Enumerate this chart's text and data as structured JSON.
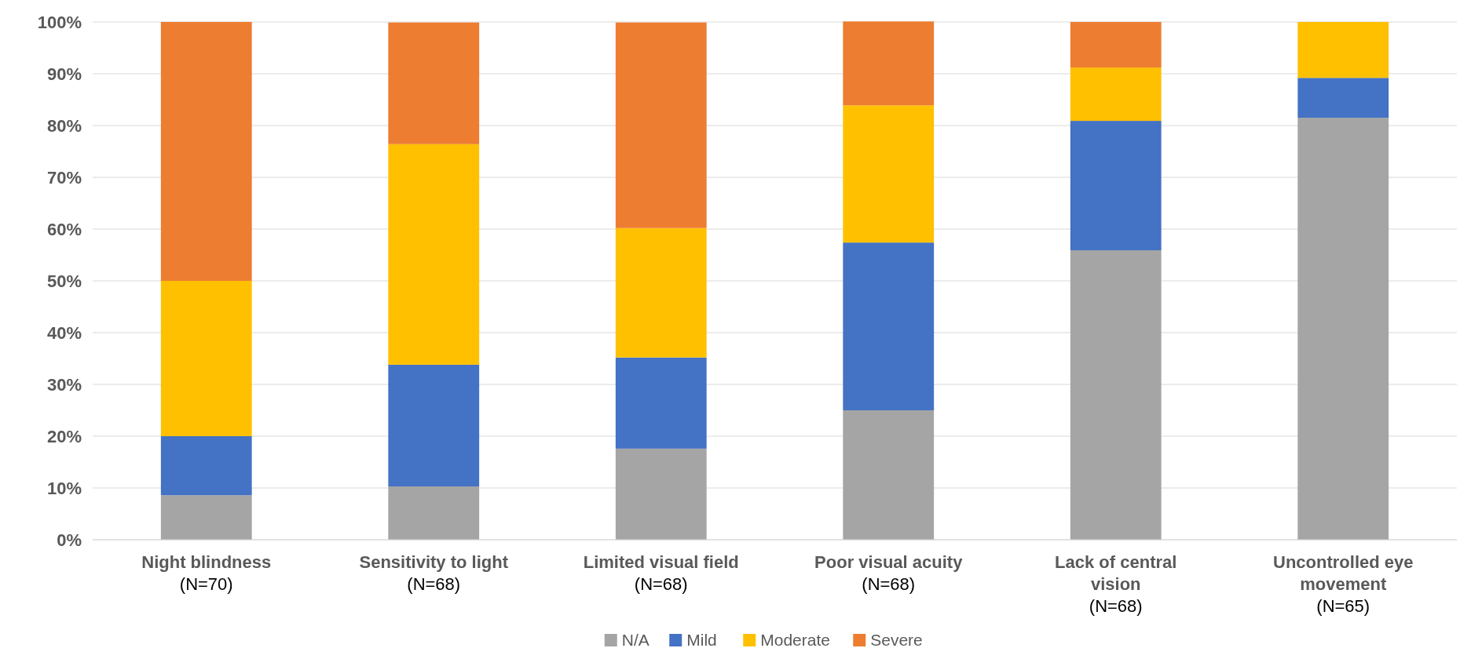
{
  "chart_data": {
    "type": "bar",
    "stacked": true,
    "categories": [
      "Night blindness\n(N=70)",
      "Sensitivity to light\n(N=68)",
      "Limited visual field\n(N=68)",
      "Poor visual acuity\n(N=68)",
      "Lack of central\nvision\n(N=68)",
      "Uncontrolled eye\nmovement\n(N=65)"
    ],
    "series": [
      {
        "name": "N/A",
        "color": "#a5a5a5",
        "values": [
          8.6,
          10.3,
          17.6,
          25.0,
          55.9,
          81.5
        ]
      },
      {
        "name": "Mild",
        "color": "#4472c4",
        "values": [
          11.4,
          23.5,
          17.6,
          32.4,
          25.0,
          7.7
        ]
      },
      {
        "name": "Moderate",
        "color": "#ffc000",
        "values": [
          30.0,
          42.6,
          25.0,
          26.5,
          10.3,
          10.8
        ]
      },
      {
        "name": "Severe",
        "color": "#ed7d31",
        "values": [
          50.0,
          23.5,
          39.7,
          16.2,
          8.8,
          0
        ]
      }
    ],
    "ylim": [
      0,
      100
    ],
    "yticks": [
      {
        "value": 0,
        "label": "0%"
      },
      {
        "value": 10,
        "label": "10%"
      },
      {
        "value": 20,
        "label": "20%"
      },
      {
        "value": 30,
        "label": "30%"
      },
      {
        "value": 40,
        "label": "40%"
      },
      {
        "value": 50,
        "label": "50%"
      },
      {
        "value": 60,
        "label": "60%"
      },
      {
        "value": 70,
        "label": "70%"
      },
      {
        "value": 80,
        "label": "80%"
      },
      {
        "value": 90,
        "label": "90%"
      },
      {
        "value": 100,
        "label": "100%"
      }
    ],
    "grid": "y",
    "legend": "bottom"
  }
}
